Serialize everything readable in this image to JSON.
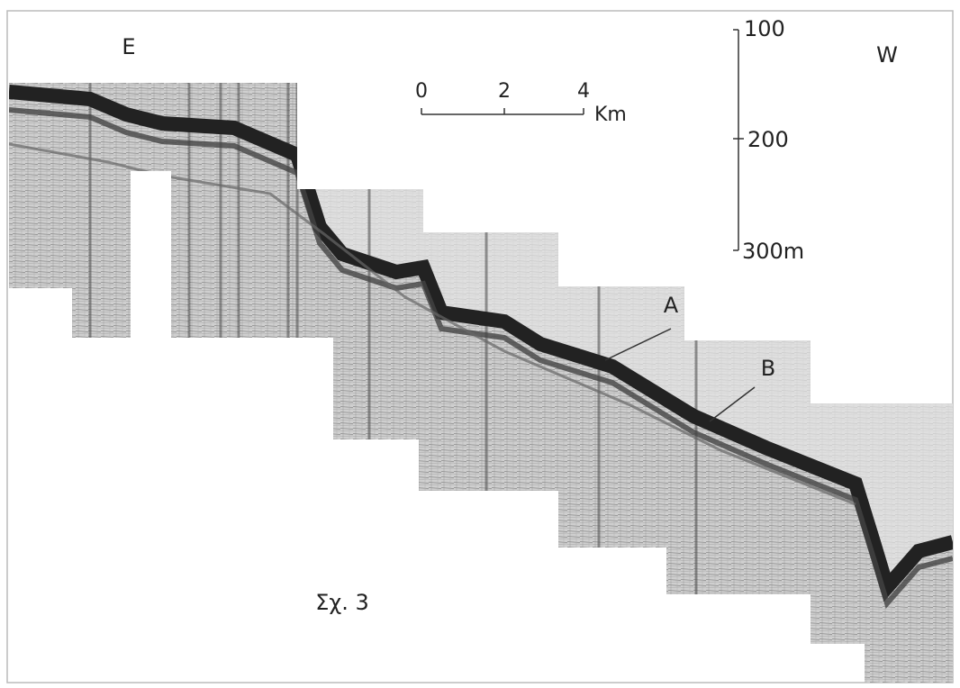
{
  "figure": {
    "east_label": "E",
    "west_label": "W",
    "horizontal_scale": {
      "ticks": [
        0,
        2,
        4
      ],
      "unit": "Km"
    },
    "vertical_scale": {
      "ticks": [
        100,
        200,
        "300m"
      ]
    },
    "reflectors": [
      "A",
      "B"
    ],
    "caption": "Σχ. 3"
  }
}
